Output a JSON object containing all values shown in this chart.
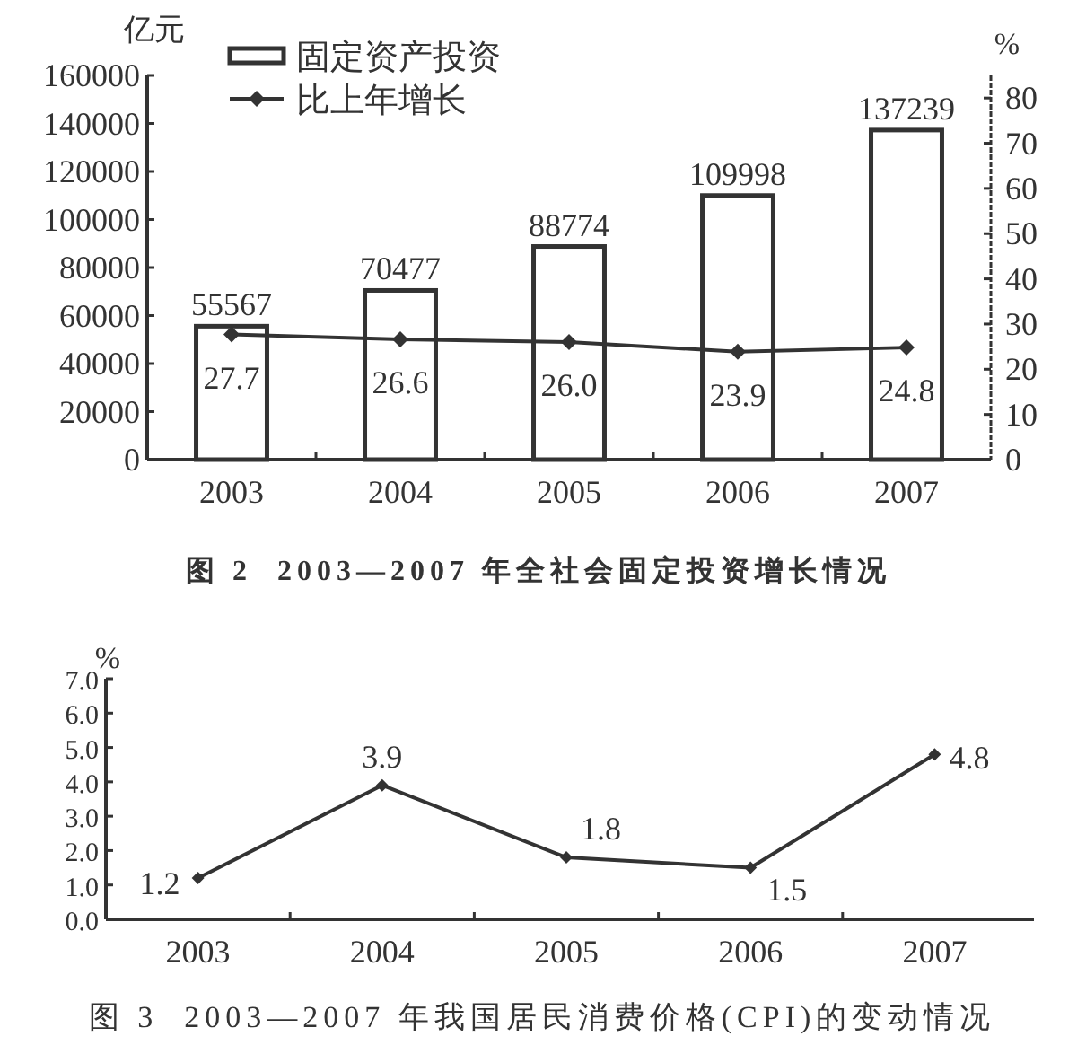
{
  "chart_data": [
    {
      "type": "bar",
      "title": "图 2  2003—2007 年全社会固定投资增长情况",
      "ylabel": "亿元",
      "y2label": "%",
      "categories": [
        "2003",
        "2004",
        "2005",
        "2006",
        "2007"
      ],
      "series": [
        {
          "name": "固定资产投资",
          "color": "#333333",
          "values": [
            55567,
            70477,
            88774,
            109998,
            137239
          ],
          "value_labels": [
            "55567",
            "70477",
            "88774",
            "109998",
            "137239"
          ]
        },
        {
          "name": "比上年增长",
          "type": "line",
          "axis": "y2",
          "color": "#333333",
          "values": [
            27.7,
            26.6,
            26.0,
            23.9,
            24.8
          ],
          "value_labels": [
            "27.7",
            "26.6",
            "26.0",
            "23.9",
            "24.8"
          ]
        }
      ],
      "ylim": [
        0,
        160000
      ],
      "yticks": [
        0,
        20000,
        40000,
        60000,
        80000,
        100000,
        120000,
        140000,
        160000
      ],
      "y2lim": [
        0,
        85
      ],
      "y2ticks": [
        0,
        10,
        20,
        30,
        40,
        50,
        60,
        70,
        80
      ],
      "marker": "diamond",
      "line_style": "solid",
      "legend": "top left"
    },
    {
      "type": "line",
      "title": "图 3  2003—2007 年我国居民消费价格(CPI)的变动情况",
      "ylabel": "%",
      "categories": [
        "2003",
        "2004",
        "2005",
        "2006",
        "2007"
      ],
      "values": [
        1.2,
        3.9,
        1.8,
        1.5,
        4.8
      ],
      "color": "#333333",
      "data_labels": true,
      "ylim": [
        0,
        7
      ],
      "yticks": [
        {
          "value": 0,
          "label": "0.0"
        },
        {
          "value": 1,
          "label": "1.0"
        },
        {
          "value": 2,
          "label": "2.0"
        },
        {
          "value": 3,
          "label": "3.0"
        },
        {
          "value": 4,
          "label": "4.0"
        },
        {
          "value": 5,
          "label": "5.0"
        },
        {
          "value": 6,
          "label": "6.0"
        },
        {
          "value": 7,
          "label": "7.0"
        }
      ],
      "marker": "diamond",
      "line_style": "solid"
    }
  ]
}
